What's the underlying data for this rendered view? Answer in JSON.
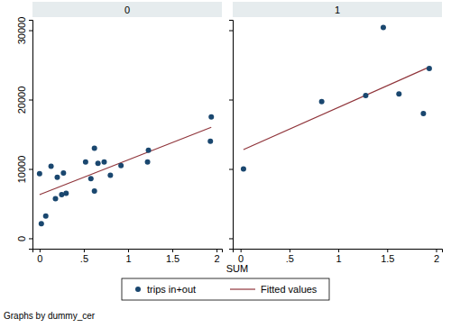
{
  "chart_data": {
    "type": "scatter",
    "x_label": "SUM",
    "note": "Graphs by dummy_cer",
    "legend": "bottom",
    "grid": false,
    "xlim": [
      -0.08,
      2.06
    ],
    "xticks": [
      0,
      {
        "value": 0.5,
        "label": ".5"
      },
      1,
      {
        "value": 1.5,
        "label": "1.5"
      },
      2
    ],
    "ylim": [
      -1500,
      31500
    ],
    "yticks": [
      0,
      10000,
      20000,
      30000
    ],
    "series": [
      {
        "name": "trips in+out",
        "color": "#1a476f",
        "type": "scatter",
        "marker": "circle"
      },
      {
        "name": "Fitted values",
        "color": "#90353b",
        "type": "line",
        "line_style": "solid"
      }
    ],
    "panels": [
      {
        "title": "0",
        "series": [
          {
            "x": [
              0.0,
              0.02,
              0.07,
              0.13,
              0.18,
              0.2,
              0.25,
              0.27,
              0.3,
              0.52,
              0.58,
              0.62,
              0.62,
              0.66,
              0.73,
              0.8,
              0.92,
              1.22,
              1.23,
              1.93,
              1.94
            ],
            "values": [
              9300,
              2100,
              3200,
              10400,
              5700,
              8800,
              6300,
              9400,
              6500,
              11000,
              8600,
              13000,
              6800,
              10800,
              11000,
              9100,
              10500,
              11000,
              12700,
              14000,
              17500
            ]
          },
          {
            "x": [
              0.0,
              1.94
            ],
            "values": [
              6300,
              16000
            ]
          }
        ]
      },
      {
        "title": "1",
        "series": [
          {
            "x": [
              0.03,
              0.83,
              1.28,
              1.46,
              1.62,
              1.87,
              1.93
            ],
            "values": [
              10000,
              19700,
              20600,
              30400,
              20800,
              18000,
              24500
            ]
          },
          {
            "x": [
              0.03,
              1.93
            ],
            "values": [
              12800,
              24700
            ]
          }
        ]
      }
    ]
  }
}
